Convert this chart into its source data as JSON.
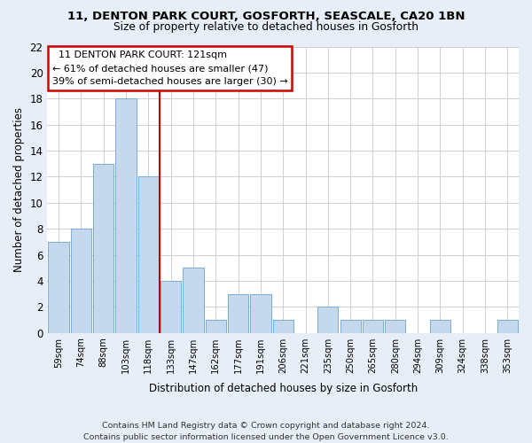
{
  "title1": "11, DENTON PARK COURT, GOSFORTH, SEASCALE, CA20 1BN",
  "title2": "Size of property relative to detached houses in Gosforth",
  "xlabel": "Distribution of detached houses by size in Gosforth",
  "ylabel": "Number of detached properties",
  "categories": [
    "59sqm",
    "74sqm",
    "88sqm",
    "103sqm",
    "118sqm",
    "133sqm",
    "147sqm",
    "162sqm",
    "177sqm",
    "191sqm",
    "206sqm",
    "221sqm",
    "235sqm",
    "250sqm",
    "265sqm",
    "280sqm",
    "294sqm",
    "309sqm",
    "324sqm",
    "338sqm",
    "353sqm"
  ],
  "values": [
    7,
    8,
    13,
    18,
    12,
    4,
    5,
    1,
    3,
    3,
    1,
    0,
    2,
    1,
    1,
    1,
    0,
    1,
    0,
    0,
    1
  ],
  "bar_color": "#c5d8ee",
  "bar_edgecolor": "#7aadd4",
  "ylim": [
    0,
    22
  ],
  "yticks": [
    0,
    2,
    4,
    6,
    8,
    10,
    12,
    14,
    16,
    18,
    20,
    22
  ],
  "vline_x": 4.5,
  "vline_color": "#cc0000",
  "annotation_line1": "  11 DENTON PARK COURT: 121sqm",
  "annotation_line2": "← 61% of detached houses are smaller (47)",
  "annotation_line3": "39% of semi-detached houses are larger (30) →",
  "annotation_box_color": "#ffffff",
  "annotation_box_edgecolor": "#cc0000",
  "footer1": "Contains HM Land Registry data © Crown copyright and database right 2024.",
  "footer2": "Contains public sector information licensed under the Open Government Licence v3.0.",
  "background_color": "#e8eef7",
  "plot_background": "#ffffff",
  "fig_width": 6.0,
  "fig_height": 5.0,
  "dpi": 100
}
